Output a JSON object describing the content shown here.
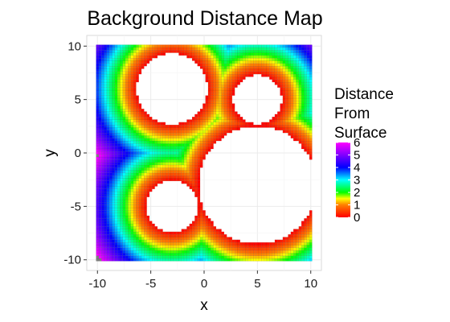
{
  "chart_data": {
    "type": "heatmap",
    "title": "Background Distance Map",
    "xlabel": "x",
    "ylabel": "y",
    "xlim": [
      -11,
      11
    ],
    "ylim": [
      -11,
      11
    ],
    "x_ticks": [
      -10,
      -5,
      0,
      5,
      10
    ],
    "y_ticks": [
      -10,
      -5,
      0,
      5,
      10
    ],
    "x_tick_labels": [
      "-10",
      "-5",
      "0",
      "5",
      "10"
    ],
    "y_tick_labels": [
      "-10",
      "-5",
      "0",
      "5",
      "10"
    ],
    "grid": true,
    "grid_range": {
      "x": [
        -10,
        10
      ],
      "y": [
        -10,
        10
      ],
      "step": 0.25
    },
    "holes": [
      {
        "cx": -3,
        "cy": 6,
        "r": 3.3
      },
      {
        "cx": 5,
        "cy": 5,
        "r": 2.3
      },
      {
        "cx": -3,
        "cy": -5,
        "r": 2.4
      },
      {
        "cx": 5,
        "cy": -3,
        "r": 5.5
      }
    ],
    "value_range": [
      0,
      6
    ],
    "legend": {
      "title_lines": [
        "Distance",
        "From",
        "Surface"
      ],
      "ticks": [
        6,
        5,
        4,
        3,
        2,
        1,
        0
      ],
      "tick_labels": [
        "6",
        "5",
        "4",
        "3",
        "2",
        "1",
        "0"
      ],
      "placement": "right"
    },
    "colorscale": [
      {
        "v": 0,
        "color": "#ff0000"
      },
      {
        "v": 1,
        "color": "#ff8000"
      },
      {
        "v": 1.5,
        "color": "#ffff00"
      },
      {
        "v": 2,
        "color": "#00ff00"
      },
      {
        "v": 3,
        "color": "#00ffff"
      },
      {
        "v": 4,
        "color": "#0000ff"
      },
      {
        "v": 5,
        "color": "#8000ff"
      },
      {
        "v": 6,
        "color": "#ff00ff"
      }
    ],
    "outside_color": "#7f7f7f",
    "panel_background": "#ffffff",
    "gridline_color": "#ebebeb"
  }
}
